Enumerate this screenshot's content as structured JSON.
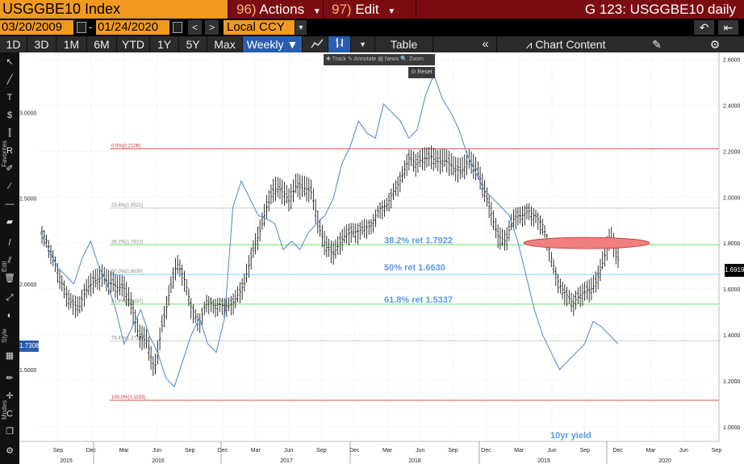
{
  "titlebar": {
    "ticker": "USGGBE10 Index",
    "actions_num": "96)",
    "actions_label": "Actions",
    "edit_num": "97)",
    "edit_label": "Edit",
    "chart_title": "G 123: USGGBE10 daily"
  },
  "dates": {
    "start": "03/20/2009",
    "end": "01/24/2020",
    "currency": "Local CCY"
  },
  "toolbar": {
    "periods": [
      "1D",
      "3D",
      "1M",
      "6M",
      "YTD",
      "1Y",
      "5Y",
      "Max"
    ],
    "frequency": "Weekly",
    "table_label": "Table",
    "chart_content_label": "Chart Content"
  },
  "float_panel": {
    "tools": "✚ Track  ✎ Annotate  ▤ News  🔍 Zoom",
    "reset": "Reset"
  },
  "left_strip": {
    "favorites_label": "Favorites",
    "edit_label": "Edit",
    "style_label": "Style",
    "modes_label": "Modes"
  },
  "colors": {
    "title_bar": "#7b0d12",
    "amber": "#f39a1e",
    "active_blue": "#2a5db0",
    "yield_line": "#5b8fd8",
    "fib_red": "#e05050",
    "fib_green": "#6fe06f",
    "fib_cyan": "#80d8ff",
    "fib_gray": "#c8c8c8",
    "annotation_text": "#5b9ae0",
    "ellipse_fill": "#f08080"
  },
  "chart_data": {
    "type": "line",
    "series": [
      {
        "name": "USGGBE10 Index",
        "style": "ohlc-bars",
        "axis": "right"
      },
      {
        "name": "10yr yield",
        "style": "line",
        "axis": "left"
      }
    ],
    "right_axis": {
      "ticks": [
        "2.6000",
        "2.4000",
        "2.2000",
        "2.0000",
        "1.8000",
        "1.6000",
        "1.4000",
        "1.2000",
        "1.0000"
      ],
      "ylim": [
        0.95,
        2.63
      ]
    },
    "left_axis": {
      "ticks": [
        "3.0000",
        "2.5000",
        "2.0000",
        "1.5000"
      ],
      "ylim": [
        1.1,
        3.35
      ]
    },
    "x_month_labels": [
      "Sep",
      "Dec",
      "Mar",
      "Jun",
      "Sep",
      "Dec",
      "Mar",
      "Jun",
      "Sep",
      "Dec",
      "Mar",
      "Jun",
      "Sep",
      "Dec",
      "Mar",
      "Jun",
      "Sep",
      "Dec",
      "Mar",
      "Jun",
      "Sep"
    ],
    "x_year_labels": [
      "2015",
      "2016",
      "2017",
      "2018",
      "2019",
      "2020"
    ],
    "fib_levels": [
      {
        "label": "0.0%(2.2106)",
        "value": 2.2106,
        "color": "red"
      },
      {
        "label": "23.6%(1.9521)",
        "value": 1.9521,
        "color": "gray"
      },
      {
        "label": "38.2%(1.7922)",
        "value": 1.7922,
        "color": "green"
      },
      {
        "label": "50.0%(1.6630)",
        "value": 1.663,
        "color": "cyan"
      },
      {
        "label": "61.8%(1.5337)",
        "value": 1.5337,
        "color": "green"
      },
      {
        "label": "76.4%(1.3739)",
        "value": 1.3739,
        "color": "gray"
      },
      {
        "label": "100.0%(1.1153)",
        "value": 1.1153,
        "color": "red"
      }
    ],
    "annotations": [
      "38.2% ret 1.7922",
      "50% ret 1.6630",
      "61.8% ret 1.5337",
      "10yr yield"
    ],
    "breakeven_weekly": [
      1.85,
      1.75,
      1.68,
      1.62,
      1.55,
      1.5,
      1.58,
      1.65,
      1.68,
      1.62,
      1.58,
      1.6,
      1.55,
      1.4,
      1.35,
      1.22,
      1.45,
      1.6,
      1.7,
      1.62,
      1.52,
      1.48,
      1.55,
      1.5,
      1.52,
      1.55,
      1.58,
      1.6,
      1.72,
      1.85,
      1.98,
      2.03,
      2.0,
      1.98,
      2.08,
      2.05,
      2.0,
      1.85,
      1.8,
      1.78,
      1.8,
      1.82,
      1.85,
      1.9,
      1.88,
      1.92,
      1.95,
      2.05,
      2.1,
      2.15,
      2.12,
      2.18,
      2.2,
      2.15,
      2.13,
      2.12,
      2.14,
      2.17,
      2.1,
      2.02,
      1.95,
      1.85,
      1.8,
      1.88,
      1.92,
      1.97,
      1.92,
      1.85,
      1.73,
      1.65,
      1.6,
      1.52,
      1.55,
      1.6,
      1.65,
      1.72,
      1.8,
      1.72
    ],
    "yield_weekly": [
      2.3,
      2.2,
      2.1,
      2.05,
      2.0,
      2.15,
      2.25,
      2.1,
      2.0,
      1.85,
      1.65,
      1.75,
      1.85,
      1.7,
      1.6,
      1.45,
      1.4,
      1.55,
      1.7,
      1.8,
      1.65,
      1.6,
      1.8,
      2.45,
      2.6,
      2.5,
      2.4,
      2.38,
      2.35,
      2.2,
      2.25,
      2.2,
      2.3,
      2.35,
      2.4,
      2.5,
      2.7,
      2.8,
      2.95,
      2.88,
      2.85,
      3.05,
      3.0,
      2.95,
      2.85,
      2.9,
      3.1,
      3.22,
      3.08,
      3.0,
      2.9,
      2.75,
      2.65,
      2.55,
      2.5,
      2.45,
      2.4,
      2.25,
      2.05,
      1.85,
      1.7,
      1.6,
      1.5,
      1.55,
      1.6,
      1.65,
      1.78,
      1.75,
      1.7,
      1.65
    ],
    "last_value": "1.6919",
    "left_last_value": "1.7308",
    "grid": true,
    "legend": "none"
  }
}
